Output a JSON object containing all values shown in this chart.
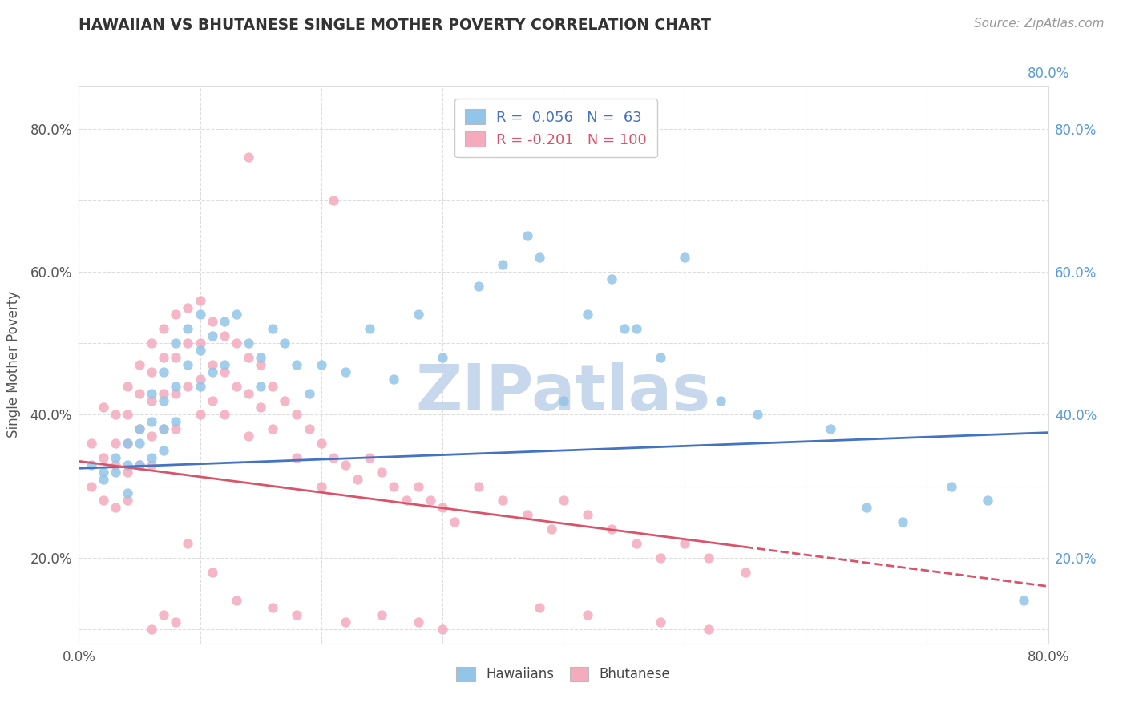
{
  "title": "HAWAIIAN VS BHUTANESE SINGLE MOTHER POVERTY CORRELATION CHART",
  "source": "Source: ZipAtlas.com",
  "ylabel": "Single Mother Poverty",
  "xlim": [
    0.0,
    0.8
  ],
  "ylim": [
    0.08,
    0.86
  ],
  "x_ticks": [
    0.0,
    0.1,
    0.2,
    0.3,
    0.4,
    0.5,
    0.6,
    0.7,
    0.8
  ],
  "y_ticks": [
    0.1,
    0.2,
    0.3,
    0.4,
    0.5,
    0.6,
    0.7,
    0.8
  ],
  "hawaiians_color": "#92C5E8",
  "bhutanese_color": "#F4ABBE",
  "trend_hawaiians_color": "#4472C4",
  "trend_bhutanese_color": "#D9536A",
  "R_hawaiians": 0.056,
  "N_hawaiians": 63,
  "R_bhutanese": -0.201,
  "N_bhutanese": 100,
  "watermark": "ZIPatlas",
  "watermark_color": "#C8D8EC",
  "trend_h_x0": 0.0,
  "trend_h_y0": 0.325,
  "trend_h_x1": 0.8,
  "trend_h_y1": 0.375,
  "trend_b_x0": 0.0,
  "trend_b_y0": 0.335,
  "trend_b_x1_solid": 0.55,
  "trend_b_y1_solid": 0.215,
  "trend_b_x1_dash": 0.8,
  "trend_b_y1_dash": 0.16,
  "hawaiians_x": [
    0.01,
    0.02,
    0.02,
    0.03,
    0.03,
    0.04,
    0.04,
    0.04,
    0.05,
    0.05,
    0.05,
    0.06,
    0.06,
    0.06,
    0.07,
    0.07,
    0.07,
    0.07,
    0.08,
    0.08,
    0.08,
    0.09,
    0.09,
    0.1,
    0.1,
    0.1,
    0.11,
    0.11,
    0.12,
    0.12,
    0.13,
    0.14,
    0.15,
    0.15,
    0.16,
    0.17,
    0.18,
    0.19,
    0.2,
    0.22,
    0.24,
    0.26,
    0.28,
    0.3,
    0.33,
    0.35,
    0.37,
    0.38,
    0.4,
    0.42,
    0.44,
    0.46,
    0.5,
    0.53,
    0.56,
    0.62,
    0.65,
    0.68,
    0.72,
    0.75,
    0.78,
    0.45,
    0.48
  ],
  "hawaiians_y": [
    0.33,
    0.32,
    0.31,
    0.34,
    0.32,
    0.36,
    0.33,
    0.29,
    0.38,
    0.36,
    0.33,
    0.43,
    0.39,
    0.34,
    0.46,
    0.42,
    0.38,
    0.35,
    0.5,
    0.44,
    0.39,
    0.52,
    0.47,
    0.54,
    0.49,
    0.44,
    0.51,
    0.46,
    0.53,
    0.47,
    0.54,
    0.5,
    0.48,
    0.44,
    0.52,
    0.5,
    0.47,
    0.43,
    0.47,
    0.46,
    0.52,
    0.45,
    0.54,
    0.48,
    0.58,
    0.61,
    0.65,
    0.62,
    0.42,
    0.54,
    0.59,
    0.52,
    0.62,
    0.42,
    0.4,
    0.38,
    0.27,
    0.25,
    0.3,
    0.28,
    0.14,
    0.52,
    0.48
  ],
  "bhutanese_x": [
    0.01,
    0.01,
    0.02,
    0.02,
    0.02,
    0.03,
    0.03,
    0.03,
    0.03,
    0.04,
    0.04,
    0.04,
    0.04,
    0.04,
    0.05,
    0.05,
    0.05,
    0.05,
    0.06,
    0.06,
    0.06,
    0.06,
    0.06,
    0.07,
    0.07,
    0.07,
    0.07,
    0.08,
    0.08,
    0.08,
    0.08,
    0.09,
    0.09,
    0.09,
    0.1,
    0.1,
    0.1,
    0.1,
    0.11,
    0.11,
    0.11,
    0.12,
    0.12,
    0.12,
    0.13,
    0.13,
    0.14,
    0.14,
    0.14,
    0.15,
    0.15,
    0.16,
    0.16,
    0.17,
    0.18,
    0.18,
    0.19,
    0.2,
    0.2,
    0.21,
    0.22,
    0.23,
    0.24,
    0.25,
    0.26,
    0.27,
    0.28,
    0.29,
    0.3,
    0.31,
    0.33,
    0.35,
    0.37,
    0.39,
    0.4,
    0.42,
    0.44,
    0.46,
    0.48,
    0.5,
    0.52,
    0.55,
    0.14,
    0.21,
    0.09,
    0.11,
    0.13,
    0.07,
    0.08,
    0.06,
    0.16,
    0.18,
    0.22,
    0.25,
    0.28,
    0.3,
    0.38,
    0.42,
    0.48,
    0.52
  ],
  "bhutanese_y": [
    0.36,
    0.3,
    0.41,
    0.34,
    0.28,
    0.4,
    0.36,
    0.33,
    0.27,
    0.44,
    0.4,
    0.36,
    0.32,
    0.28,
    0.47,
    0.43,
    0.38,
    0.33,
    0.5,
    0.46,
    0.42,
    0.37,
    0.33,
    0.52,
    0.48,
    0.43,
    0.38,
    0.54,
    0.48,
    0.43,
    0.38,
    0.55,
    0.5,
    0.44,
    0.56,
    0.5,
    0.45,
    0.4,
    0.53,
    0.47,
    0.42,
    0.51,
    0.46,
    0.4,
    0.5,
    0.44,
    0.48,
    0.43,
    0.37,
    0.47,
    0.41,
    0.44,
    0.38,
    0.42,
    0.4,
    0.34,
    0.38,
    0.36,
    0.3,
    0.34,
    0.33,
    0.31,
    0.34,
    0.32,
    0.3,
    0.28,
    0.3,
    0.28,
    0.27,
    0.25,
    0.3,
    0.28,
    0.26,
    0.24,
    0.28,
    0.26,
    0.24,
    0.22,
    0.2,
    0.22,
    0.2,
    0.18,
    0.76,
    0.7,
    0.22,
    0.18,
    0.14,
    0.12,
    0.11,
    0.1,
    0.13,
    0.12,
    0.11,
    0.12,
    0.11,
    0.1,
    0.13,
    0.12,
    0.11,
    0.1
  ]
}
